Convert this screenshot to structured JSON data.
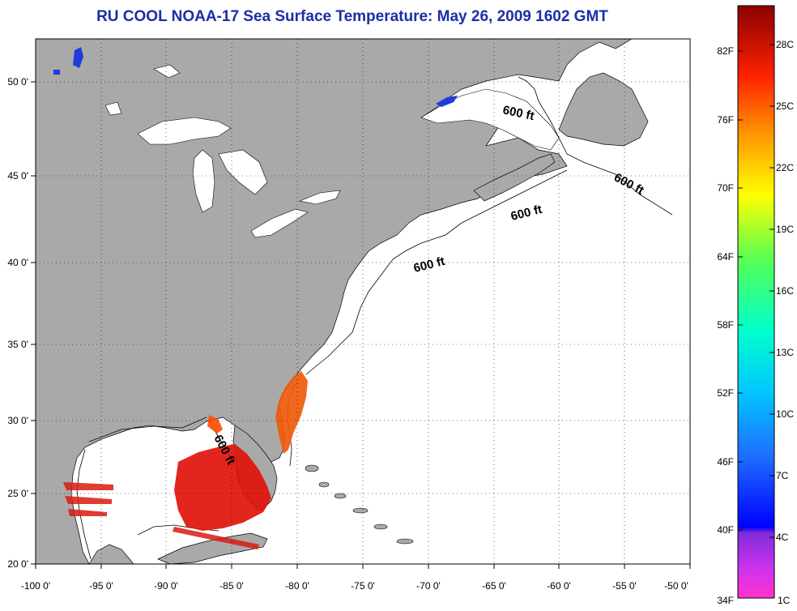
{
  "title": "RU COOL  NOAA-17  Sea Surface Temperature:  May 26, 2009 1602 GMT",
  "map": {
    "lon_range": [
      -100,
      -50
    ],
    "lat_range": [
      20,
      52.5
    ],
    "lon_ticks": [
      "-100 0'",
      "-95 0'",
      "-90 0'",
      "-85 0'",
      "-80 0'",
      "-75 0'",
      "-70 0'",
      "-65 0'",
      "-60 0'",
      "-55 0'",
      "-50 0'"
    ],
    "lat_ticks": [
      "20 0'",
      "25 0'",
      "30 0'",
      "35 0'",
      "40 0'",
      "45 0'",
      "50 0'"
    ],
    "grid": "dotted",
    "land_color": "#a9a9a9",
    "water_color": "#ffffff",
    "depth_labels": [
      "600 ft",
      "600 ft",
      "600 ft",
      "600 ft",
      "600 ft"
    ]
  },
  "colorbar": {
    "fahrenheit": [
      "82F",
      "76F",
      "70F",
      "64F",
      "58F",
      "52F",
      "46F",
      "40F",
      "34F"
    ],
    "celsius": [
      "28C",
      "25C",
      "22C",
      "19C",
      "16C",
      "13C",
      "10C",
      "7C",
      "4C",
      "1C"
    ],
    "gradient": [
      "#8b0000",
      "#ff0000",
      "#ff8c00",
      "#ffff00",
      "#7fff00",
      "#00ff7f",
      "#00ffff",
      "#1e90ff",
      "#0000ff",
      "#8a2be2",
      "#ff33cc"
    ]
  }
}
